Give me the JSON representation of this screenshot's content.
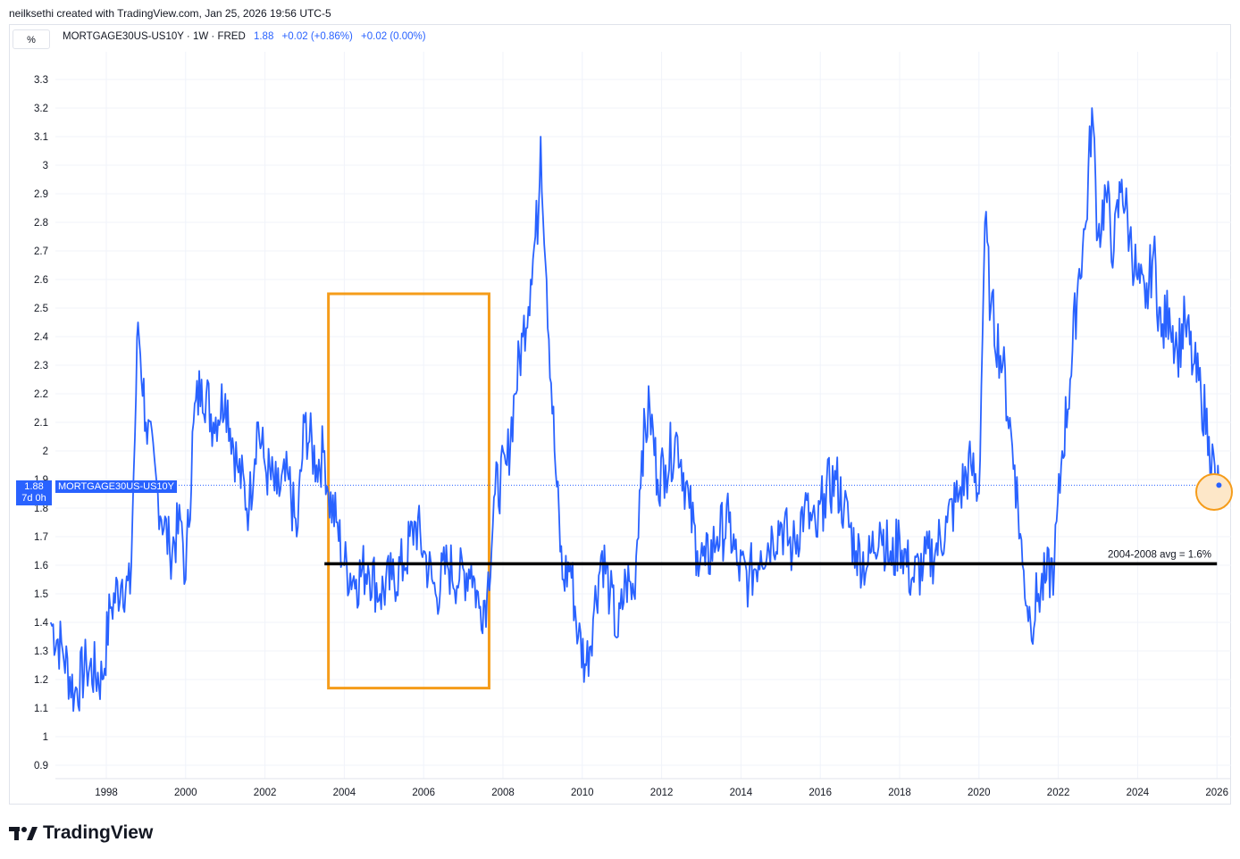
{
  "header": {
    "credit": "neilksethi created with TradingView.com, Jan 25, 2026 19:56 UTC-5",
    "scale_button": "%",
    "symbol": "MORTGAGE30US-US10Y",
    "interval": "1W",
    "source": "FRED",
    "last": "1.88",
    "change": "+0.02 (+0.86%)",
    "change2": "+0.02 (0.00%)"
  },
  "price_tag": {
    "value": "1.88",
    "countdown": "7d 0h",
    "series_label": "MORTGAGE30US-US10Y"
  },
  "annotation": {
    "text": "2004-2008 avg = 1.6%"
  },
  "footer": {
    "brand": "TradingView"
  },
  "colors": {
    "series": "#2962ff",
    "box": "#f59c1a",
    "avg_line": "#000000",
    "marker_fill": "#fde7c8"
  },
  "chart_data": {
    "type": "line",
    "x_range": [
      1996.6,
      2026.3
    ],
    "ylim": [
      0.85,
      3.45
    ],
    "y_ticks": [
      0.9,
      1,
      1.1,
      1.2,
      1.3,
      1.4,
      1.5,
      1.6,
      1.7,
      1.8,
      1.9,
      2,
      2.1,
      2.2,
      2.3,
      2.4,
      2.5,
      2.6,
      2.7,
      2.8,
      2.9,
      3,
      3.1,
      3.2,
      3.3
    ],
    "y_tick_labels": [
      "0.9",
      "1",
      "1.1",
      "1.2",
      "1.3",
      "1.4",
      "1.5",
      "1.6",
      "1.7",
      "1.8",
      "1.9",
      "2",
      "2.1",
      "2.2",
      "2.3",
      "2.4",
      "2.5",
      "2.6",
      "2.7",
      "2.8",
      "2.9",
      "3",
      "3.1",
      "3.2",
      "3.3"
    ],
    "x_ticks": [
      1998,
      2000,
      2002,
      2004,
      2006,
      2008,
      2010,
      2012,
      2014,
      2016,
      2018,
      2020,
      2022,
      2024,
      2026
    ],
    "x_tick_labels": [
      "1998",
      "2000",
      "2002",
      "2004",
      "2006",
      "2008",
      "2010",
      "2012",
      "2014",
      "2016",
      "2018",
      "2020",
      "2022",
      "2024",
      "2026"
    ],
    "grid": true,
    "series": [
      {
        "values": [
          [
            1996.6,
            1.4
          ],
          [
            1996.9,
            1.3
          ],
          [
            1997.2,
            1.15
          ],
          [
            1997.5,
            1.25
          ],
          [
            1997.9,
            1.2
          ],
          [
            1998.1,
            1.45
          ],
          [
            1998.4,
            1.55
          ],
          [
            1998.6,
            1.5
          ],
          [
            1998.75,
            2.2
          ],
          [
            1998.8,
            2.45
          ],
          [
            1999.0,
            2.1
          ],
          [
            1999.3,
            1.85
          ],
          [
            1999.6,
            1.65
          ],
          [
            1999.9,
            1.75
          ],
          [
            2000.0,
            1.55
          ],
          [
            2000.2,
            2.1
          ],
          [
            2000.4,
            2.25
          ],
          [
            2000.7,
            2.1
          ],
          [
            2001.0,
            2.2
          ],
          [
            2001.3,
            1.95
          ],
          [
            2001.6,
            1.8
          ],
          [
            2001.8,
            2.1
          ],
          [
            2002.0,
            1.95
          ],
          [
            2002.3,
            1.85
          ],
          [
            2002.6,
            1.9
          ],
          [
            2002.8,
            1.7
          ],
          [
            2003.0,
            2.1
          ],
          [
            2003.3,
            1.95
          ],
          [
            2003.5,
            2.0
          ],
          [
            2003.6,
            1.85
          ],
          [
            2003.8,
            1.75
          ],
          [
            2004.0,
            1.6
          ],
          [
            2004.3,
            1.55
          ],
          [
            2004.6,
            1.6
          ],
          [
            2004.9,
            1.5
          ],
          [
            2005.2,
            1.55
          ],
          [
            2005.5,
            1.6
          ],
          [
            2005.8,
            1.75
          ],
          [
            2006.0,
            1.65
          ],
          [
            2006.3,
            1.5
          ],
          [
            2006.6,
            1.6
          ],
          [
            2006.9,
            1.55
          ],
          [
            2007.2,
            1.6
          ],
          [
            2007.4,
            1.45
          ],
          [
            2007.6,
            1.5
          ],
          [
            2007.8,
            1.85
          ],
          [
            2008.1,
            1.95
          ],
          [
            2008.3,
            2.2
          ],
          [
            2008.5,
            2.4
          ],
          [
            2008.7,
            2.6
          ],
          [
            2008.9,
            2.85
          ],
          [
            2008.95,
            3.1
          ],
          [
            2009.1,
            2.6
          ],
          [
            2009.3,
            2.0
          ],
          [
            2009.5,
            1.55
          ],
          [
            2009.7,
            1.6
          ],
          [
            2009.9,
            1.35
          ],
          [
            2010.1,
            1.25
          ],
          [
            2010.3,
            1.45
          ],
          [
            2010.5,
            1.65
          ],
          [
            2010.7,
            1.5
          ],
          [
            2010.9,
            1.35
          ],
          [
            2011.1,
            1.55
          ],
          [
            2011.3,
            1.5
          ],
          [
            2011.5,
            2.0
          ],
          [
            2011.7,
            2.15
          ],
          [
            2011.9,
            1.9
          ],
          [
            2012.1,
            1.95
          ],
          [
            2012.4,
            2.05
          ],
          [
            2012.7,
            1.8
          ],
          [
            2012.9,
            1.65
          ],
          [
            2013.1,
            1.6
          ],
          [
            2013.4,
            1.7
          ],
          [
            2013.7,
            1.75
          ],
          [
            2013.9,
            1.6
          ],
          [
            2014.2,
            1.55
          ],
          [
            2014.5,
            1.65
          ],
          [
            2014.8,
            1.7
          ],
          [
            2015.0,
            1.75
          ],
          [
            2015.3,
            1.65
          ],
          [
            2015.6,
            1.8
          ],
          [
            2015.9,
            1.7
          ],
          [
            2016.1,
            1.85
          ],
          [
            2016.4,
            1.9
          ],
          [
            2016.6,
            1.8
          ],
          [
            2016.9,
            1.65
          ],
          [
            2017.2,
            1.6
          ],
          [
            2017.5,
            1.75
          ],
          [
            2017.8,
            1.6
          ],
          [
            2018.0,
            1.7
          ],
          [
            2018.3,
            1.55
          ],
          [
            2018.6,
            1.6
          ],
          [
            2018.9,
            1.65
          ],
          [
            2019.2,
            1.75
          ],
          [
            2019.5,
            1.85
          ],
          [
            2019.8,
            1.95
          ],
          [
            2020.0,
            1.85
          ],
          [
            2020.15,
            2.8
          ],
          [
            2020.3,
            2.5
          ],
          [
            2020.6,
            2.3
          ],
          [
            2020.9,
            1.95
          ],
          [
            2021.1,
            1.6
          ],
          [
            2021.3,
            1.4
          ],
          [
            2021.5,
            1.5
          ],
          [
            2021.7,
            1.55
          ],
          [
            2021.9,
            1.6
          ],
          [
            2022.1,
            2.0
          ],
          [
            2022.3,
            2.25
          ],
          [
            2022.5,
            2.6
          ],
          [
            2022.7,
            2.8
          ],
          [
            2022.85,
            3.2
          ],
          [
            2023.0,
            2.75
          ],
          [
            2023.2,
            2.9
          ],
          [
            2023.4,
            2.7
          ],
          [
            2023.6,
            2.95
          ],
          [
            2023.8,
            2.75
          ],
          [
            2024.0,
            2.6
          ],
          [
            2024.2,
            2.5
          ],
          [
            2024.4,
            2.7
          ],
          [
            2024.6,
            2.4
          ],
          [
            2024.8,
            2.5
          ],
          [
            2025.0,
            2.35
          ],
          [
            2025.2,
            2.45
          ],
          [
            2025.4,
            2.3
          ],
          [
            2025.6,
            2.2
          ],
          [
            2025.8,
            2.05
          ],
          [
            2026.0,
            1.85
          ],
          [
            2026.05,
            1.88
          ]
        ]
      }
    ],
    "avg_line": {
      "x_start": 2003.5,
      "x_end": 2026.0,
      "y": 1.605
    },
    "highlight_box": {
      "x_start": 2003.6,
      "x_end": 2007.65,
      "y_low": 1.17,
      "y_high": 2.55
    },
    "last_marker": {
      "x": 2026.05,
      "y": 1.88
    }
  }
}
